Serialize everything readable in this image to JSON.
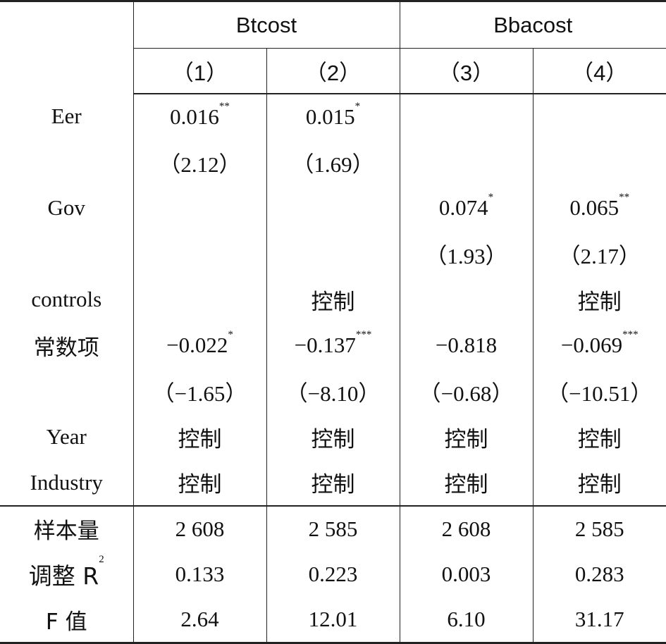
{
  "header": {
    "group1": "Btcost",
    "group2": "Bbacost",
    "col1": "（1）",
    "col2": "（2）",
    "col3": "（3）",
    "col4": "（4）"
  },
  "rows": [
    {
      "label": "Eer",
      "c1": "0.016",
      "s1": "**",
      "c2": "0.015",
      "s2": "*",
      "c3": "",
      "s3": "",
      "c4": "",
      "s4": ""
    },
    {
      "label": "",
      "c1": "（2.12）",
      "s1": "",
      "c2": "（1.69）",
      "s2": "",
      "c3": "",
      "s3": "",
      "c4": "",
      "s4": ""
    },
    {
      "label": "Gov",
      "c1": "",
      "s1": "",
      "c2": "",
      "s2": "",
      "c3": "0.074",
      "s3": "*",
      "c4": "0.065",
      "s4": "**"
    },
    {
      "label": "",
      "c1": "",
      "s1": "",
      "c2": "",
      "s2": "",
      "c3": "（1.93）",
      "s3": "",
      "c4": "（2.17）",
      "s4": ""
    },
    {
      "label": "controls",
      "c1": "",
      "s1": "",
      "c2": "控制",
      "s2": "",
      "c3": "",
      "s3": "",
      "c4": "控制",
      "s4": ""
    },
    {
      "label": "常数项",
      "c1": "−0.022",
      "s1": "*",
      "c2": "−0.137",
      "s2": "***",
      "c3": "−0.818",
      "s3": "",
      "c4": "−0.069",
      "s4": "***"
    },
    {
      "label": "",
      "c1": "（−1.65）",
      "s1": "",
      "c2": "（−8.10）",
      "s2": "",
      "c3": "（−0.68）",
      "s3": "",
      "c4": "（−10.51）",
      "s4": ""
    },
    {
      "label": "Year",
      "c1": "控制",
      "s1": "",
      "c2": "控制",
      "s2": "",
      "c3": "控制",
      "s3": "",
      "c4": "控制",
      "s4": ""
    },
    {
      "label": "Industry",
      "c1": "控制",
      "s1": "",
      "c2": "控制",
      "s2": "",
      "c3": "控制",
      "s3": "",
      "c4": "控制",
      "s4": ""
    }
  ],
  "stats": [
    {
      "label": "样本量",
      "c1": "2 608",
      "c2": "2 585",
      "c3": "2 608",
      "c4": "2 585"
    },
    {
      "label": "调整 R",
      "label_sup": "2",
      "c1": "0.133",
      "c2": "0.223",
      "c3": "0.003",
      "c4": "0.283"
    },
    {
      "label": "F 值",
      "c1": "2.64",
      "c2": "12.01",
      "c3": "6.10",
      "c4": "31.17"
    }
  ]
}
